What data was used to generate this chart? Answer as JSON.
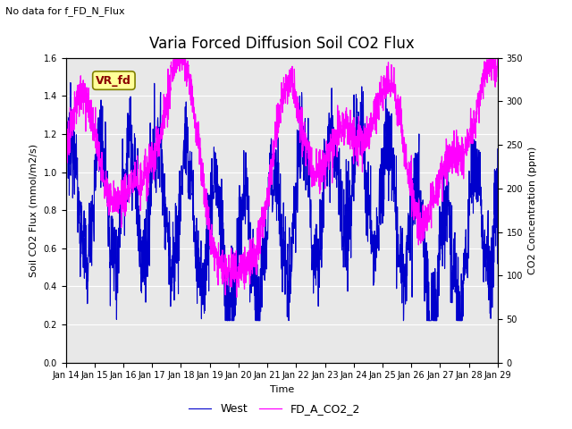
{
  "title": "Varia Forced Diffusion Soil CO2 Flux",
  "no_data_text": "No data for f_FD_N_Flux",
  "xlabel": "Time",
  "ylabel_left": "Soil CO2 Flux (mmol/m2/s)",
  "ylabel_right": "CO2 Concentration (ppm)",
  "legend_label": "VR_fd",
  "series1_label": "West",
  "series2_label": "FD_A_CO2_2",
  "series1_color": "#0000CC",
  "series2_color": "#FF00FF",
  "ylim_left": [
    0.0,
    1.6
  ],
  "ylim_right": [
    0,
    350
  ],
  "xtick_labels": [
    "Jan 14",
    "Jan 15",
    "Jan 16",
    "Jan 17",
    "Jan 18",
    "Jan 19",
    "Jan 20",
    "Jan 21",
    "Jan 22",
    "Jan 23",
    "Jan 24",
    "Jan 25",
    "Jan 26",
    "Jan 27",
    "Jan 28",
    "Jan 29"
  ],
  "background_color": "#e8e8e8",
  "fig_background": "#ffffff",
  "title_fontsize": 12,
  "label_fontsize": 8,
  "tick_fontsize": 7,
  "legend_fontsize": 9,
  "vr_text_color": "#8B0000"
}
